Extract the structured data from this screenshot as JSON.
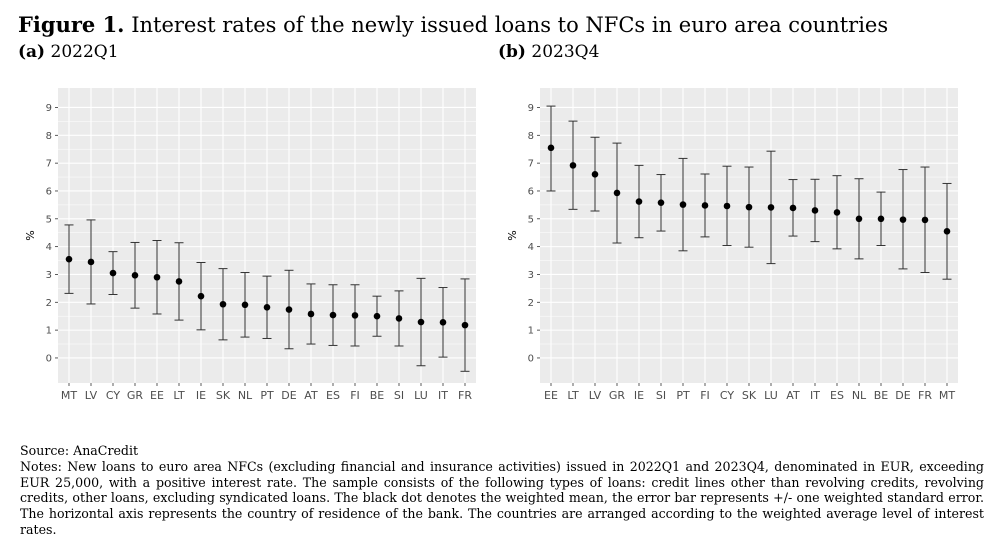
{
  "figure": {
    "label": "Figure 1.",
    "title": "Interest rates of the newly issued loans to NFCs in euro area countries"
  },
  "notes": {
    "source": "Source: AnaCredit",
    "text": "Notes: New loans to euro area NFCs (excluding financial and insurance activities) issued in 2022Q1 and 2023Q4, denominated in EUR, exceeding EUR 25,000, with a positive interest rate. The sample consists of the following types of loans: credit lines other than revolving credits, revolving credits, other loans, excluding syndicated loans. The black dot denotes the weighted mean, the error bar represents +/- one weighted standard error. The horizontal axis represents the country of residence of the bank. The countries are arranged according to the weighted average level of interest rates."
  },
  "colors": {
    "panel_background": "#ebebeb",
    "grid": "#ffffff",
    "point": "#000000",
    "error_bar": "#333333",
    "tick_label": "#4d4d4d"
  },
  "chart_data": [
    {
      "type": "scatter",
      "panel_letter": "(a)",
      "panel_title": "2022Q1",
      "ylabel": "%",
      "xlabel": "",
      "ylim": [
        -0.9,
        9.7
      ],
      "yticks": [
        0,
        1,
        2,
        3,
        4,
        5,
        6,
        7,
        8,
        9
      ],
      "grid": true,
      "legend": "none",
      "categories": [
        "MT",
        "LV",
        "CY",
        "GR",
        "EE",
        "LT",
        "IE",
        "SK",
        "NL",
        "PT",
        "DE",
        "AT",
        "ES",
        "FI",
        "BE",
        "SI",
        "LU",
        "IT",
        "FR"
      ],
      "mean": [
        3.55,
        3.45,
        3.05,
        2.97,
        2.9,
        2.75,
        2.22,
        1.93,
        1.91,
        1.82,
        1.74,
        1.58,
        1.54,
        1.53,
        1.5,
        1.42,
        1.29,
        1.28,
        1.18
      ],
      "lower": [
        2.32,
        1.94,
        2.28,
        1.79,
        1.58,
        1.36,
        1.01,
        0.65,
        0.75,
        0.7,
        0.33,
        0.5,
        0.45,
        0.43,
        0.78,
        0.43,
        -0.28,
        0.03,
        -0.48
      ],
      "upper": [
        4.78,
        4.96,
        3.82,
        4.15,
        4.22,
        4.14,
        3.43,
        3.21,
        3.07,
        2.94,
        3.15,
        2.66,
        2.63,
        2.63,
        2.22,
        2.41,
        2.86,
        2.53,
        2.84
      ]
    },
    {
      "type": "scatter",
      "panel_letter": "(b)",
      "panel_title": "2023Q4",
      "ylabel": "%",
      "xlabel": "",
      "ylim": [
        -0.9,
        9.7
      ],
      "yticks": [
        0,
        1,
        2,
        3,
        4,
        5,
        6,
        7,
        8,
        9
      ],
      "grid": true,
      "legend": "none",
      "categories": [
        "EE",
        "LT",
        "LV",
        "GR",
        "IE",
        "SI",
        "PT",
        "FI",
        "CY",
        "SK",
        "LU",
        "AT",
        "IT",
        "ES",
        "NL",
        "BE",
        "DE",
        "FR",
        "MT"
      ],
      "mean": [
        7.55,
        6.92,
        6.6,
        5.93,
        5.62,
        5.58,
        5.51,
        5.48,
        5.46,
        5.42,
        5.41,
        5.39,
        5.3,
        5.23,
        5.0,
        5.0,
        4.97,
        4.96,
        4.55
      ],
      "lower": [
        6.0,
        5.34,
        5.28,
        4.13,
        4.32,
        4.56,
        3.85,
        4.35,
        4.04,
        3.98,
        3.39,
        4.38,
        4.18,
        3.92,
        3.56,
        4.04,
        3.2,
        3.07,
        2.83
      ],
      "upper": [
        9.05,
        8.51,
        7.93,
        7.72,
        6.92,
        6.59,
        7.17,
        6.61,
        6.89,
        6.86,
        7.43,
        6.41,
        6.42,
        6.55,
        6.44,
        5.96,
        6.77,
        6.86,
        6.27
      ]
    }
  ]
}
